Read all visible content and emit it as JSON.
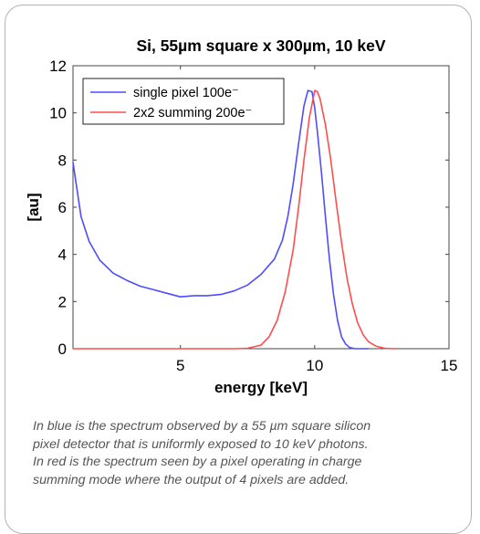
{
  "chart_data": {
    "type": "line",
    "title": "Si, 55µm square x 300µm, 10 keV",
    "xlabel": "energy [keV]",
    "ylabel": "[au]",
    "xlim": [
      1,
      15
    ],
    "ylim": [
      0,
      12
    ],
    "xticks": [
      5,
      10,
      15
    ],
    "yticks": [
      0,
      2,
      4,
      6,
      8,
      10,
      12
    ],
    "grid": false,
    "legend_position": "top-left",
    "series": [
      {
        "name": "single pixel 100e⁻",
        "color": "#4d4dff",
        "x": [
          1.0,
          1.3,
          1.6,
          2.0,
          2.5,
          3.0,
          3.5,
          4.0,
          4.5,
          5.0,
          5.5,
          6.0,
          6.5,
          7.0,
          7.5,
          8.0,
          8.5,
          8.8,
          9.0,
          9.2,
          9.4,
          9.6,
          9.75,
          9.9,
          10.0,
          10.1,
          10.25,
          10.4,
          10.55,
          10.7,
          10.85,
          11.0,
          11.15,
          11.3,
          11.5,
          12.0
        ],
        "y": [
          7.9,
          5.6,
          4.55,
          3.75,
          3.2,
          2.9,
          2.65,
          2.5,
          2.35,
          2.2,
          2.25,
          2.25,
          2.3,
          2.45,
          2.7,
          3.15,
          3.8,
          4.6,
          5.6,
          7.0,
          8.7,
          10.3,
          10.95,
          10.9,
          10.2,
          9.2,
          7.5,
          5.6,
          3.8,
          2.3,
          1.2,
          0.5,
          0.2,
          0.05,
          0.0,
          0.0
        ]
      },
      {
        "name": "2x2 summing 200e⁻",
        "color": "#ff4d4d",
        "x": [
          1.0,
          7.0,
          7.5,
          8.0,
          8.3,
          8.6,
          8.9,
          9.2,
          9.4,
          9.6,
          9.8,
          10.0,
          10.1,
          10.2,
          10.4,
          10.6,
          10.8,
          11.0,
          11.2,
          11.4,
          11.6,
          11.8,
          12.0,
          12.3,
          12.6,
          13.0
        ],
        "y": [
          0.0,
          0.0,
          0.02,
          0.15,
          0.5,
          1.2,
          2.4,
          4.2,
          6.0,
          8.0,
          9.8,
          10.95,
          10.9,
          10.6,
          9.5,
          8.0,
          6.2,
          4.5,
          3.0,
          1.9,
          1.1,
          0.6,
          0.3,
          0.1,
          0.02,
          0.0
        ]
      }
    ]
  },
  "caption": {
    "lines": [
      "In blue is the spectrum observed by a 55 µm square silicon",
      "pixel detector that is uniformly exposed to 10 keV photons.",
      "In red is the spectrum seen by a pixel operating in charge",
      "summing mode where the output of 4 pixels are added."
    ]
  }
}
